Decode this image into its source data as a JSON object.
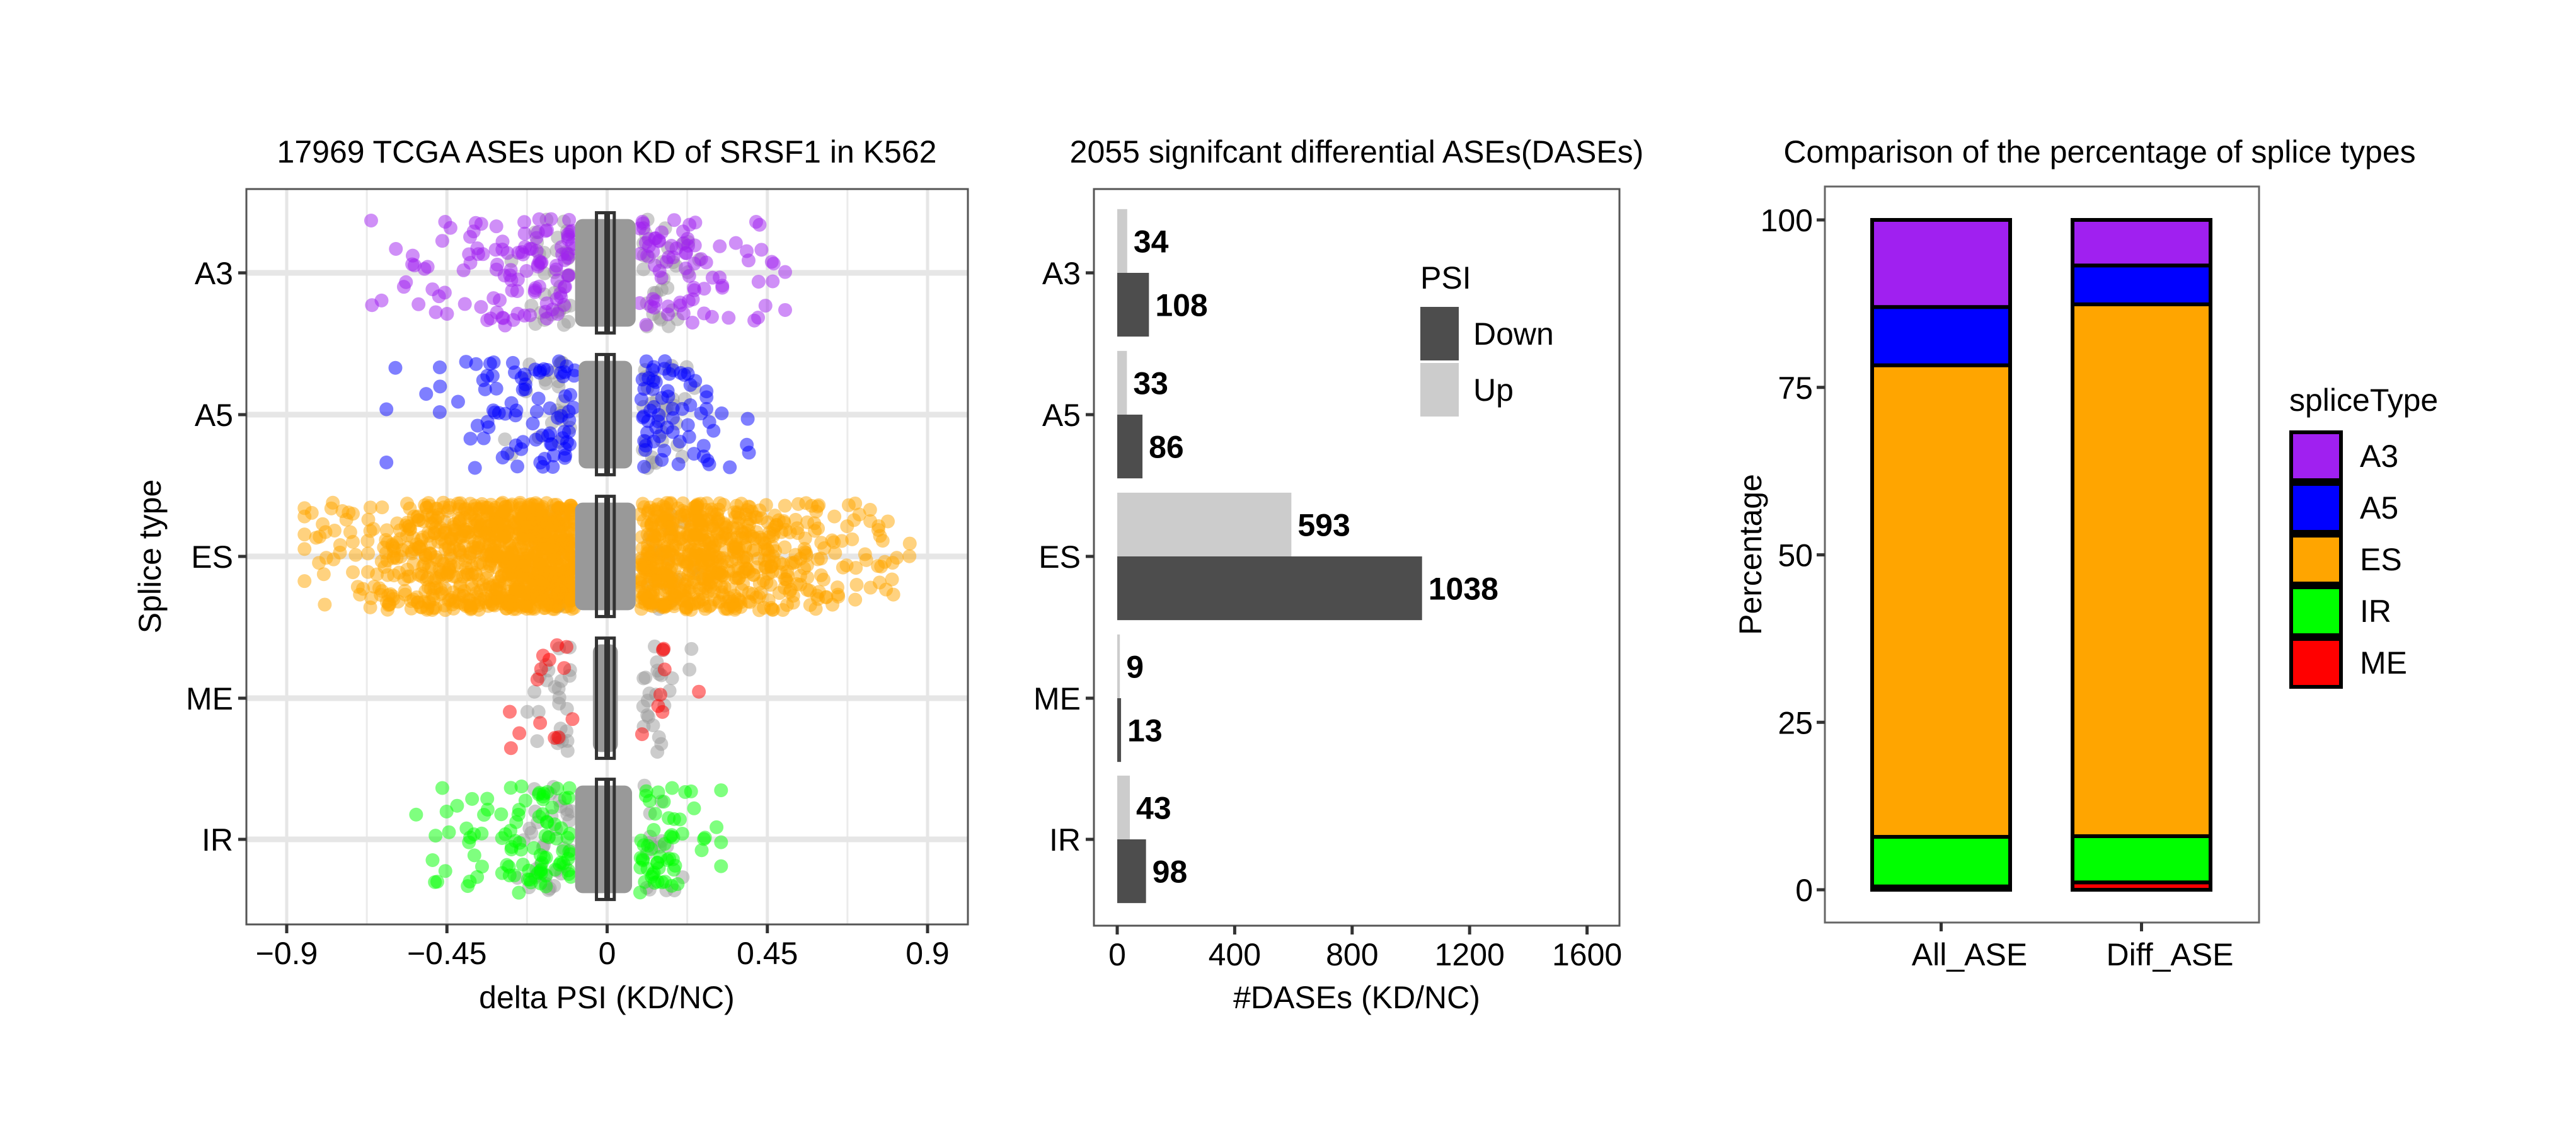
{
  "chart_data": [
    {
      "type": "scatter",
      "title": "17969 TCGA ASEs upon KD of SRSF1 in K562",
      "xlabel": "delta PSI (KD/NC)",
      "ylabel": "Splice type",
      "xlim": [
        -1.013,
        1.013
      ],
      "x_ticks": [
        {
          "value": -0.9,
          "label": "−0.9"
        },
        {
          "value": -0.45,
          "label": "−0.45"
        },
        {
          "value": 0,
          "label": "0"
        },
        {
          "value": 0.45,
          "label": "0.45"
        },
        {
          "value": 0.9,
          "label": "0.9"
        }
      ],
      "categories": [
        "A3",
        "A5",
        "ES",
        "ME",
        "IR"
      ],
      "grid": true,
      "nonsignificant_color": "#999999",
      "series": [
        {
          "name": "A3",
          "color": "#a020f0",
          "significant_range": [
            -0.7,
            0.5
          ],
          "significant_points": 190,
          "nonsig_outer_points": 60,
          "core_range": [
            -0.09,
            0.08
          ]
        },
        {
          "name": "A5",
          "color": "#0000ff",
          "significant_range": [
            -0.62,
            0.4
          ],
          "significant_points": 150,
          "nonsig_outer_points": 50,
          "core_range": [
            -0.08,
            0.07
          ]
        },
        {
          "name": "ES",
          "color": "#ffa500",
          "significant_range": [
            -0.85,
            0.85
          ],
          "significant_points": 1600,
          "nonsig_outer_points": 40,
          "core_range": [
            -0.09,
            0.08
          ]
        },
        {
          "name": "ME",
          "color": "#ff0000",
          "significant_range": [
            -0.35,
            0.3
          ],
          "significant_points": 22,
          "nonsig_outer_points": 50,
          "core_range": [
            -0.04,
            0.03
          ]
        },
        {
          "name": "IR",
          "color": "#00ff00",
          "significant_range": [
            -0.6,
            0.32
          ],
          "significant_points": 150,
          "nonsig_outer_points": 50,
          "core_range": [
            -0.09,
            0.07
          ]
        }
      ],
      "boxplot": {
        "q1": -0.03,
        "median": 0.0,
        "q3": 0.02
      }
    },
    {
      "type": "bar",
      "orientation": "horizontal",
      "title": "2055 signifcant differential ASEs(DASEs)",
      "xlabel": "#DASEs (KD/NC)",
      "ylabel": "",
      "xlim": [
        -80,
        1700
      ],
      "x_ticks": [
        0,
        400,
        800,
        1200,
        1600
      ],
      "categories": [
        "A3",
        "A5",
        "ES",
        "ME",
        "IR"
      ],
      "series": [
        {
          "name": "Up",
          "color": "#cccccc",
          "values": [
            34,
            33,
            593,
            9,
            43
          ]
        },
        {
          "name": "Down",
          "color": "#4d4d4d",
          "values": [
            108,
            86,
            1038,
            13,
            98
          ]
        }
      ],
      "legend": {
        "title": "PSI",
        "entries": [
          "Down",
          "Up"
        ],
        "position": "top-right inside"
      }
    },
    {
      "type": "bar",
      "stacked": true,
      "title": "Comparison of the percentage of splice types",
      "xlabel": "",
      "ylabel": "Percentage",
      "ylim": [
        -5,
        110
      ],
      "y_ticks": [
        0,
        25,
        50,
        75,
        100
      ],
      "categories": [
        "All_ASE",
        "Diff_ASE"
      ],
      "series": [
        {
          "name": "ME",
          "color": "#ff0000",
          "values": [
            0.5,
            1.1
          ]
        },
        {
          "name": "IR",
          "color": "#00ff00",
          "values": [
            7.4,
            6.9
          ]
        },
        {
          "name": "ES",
          "color": "#ffa500",
          "values": [
            70.4,
            79.4
          ]
        },
        {
          "name": "A5",
          "color": "#0000ff",
          "values": [
            8.7,
            5.8
          ]
        },
        {
          "name": "A3",
          "color": "#a020f0",
          "values": [
            13.0,
            6.8
          ]
        }
      ],
      "legend": {
        "title": "spliceType",
        "entries": [
          "A3",
          "A5",
          "ES",
          "IR",
          "ME"
        ],
        "position": "right"
      }
    }
  ]
}
